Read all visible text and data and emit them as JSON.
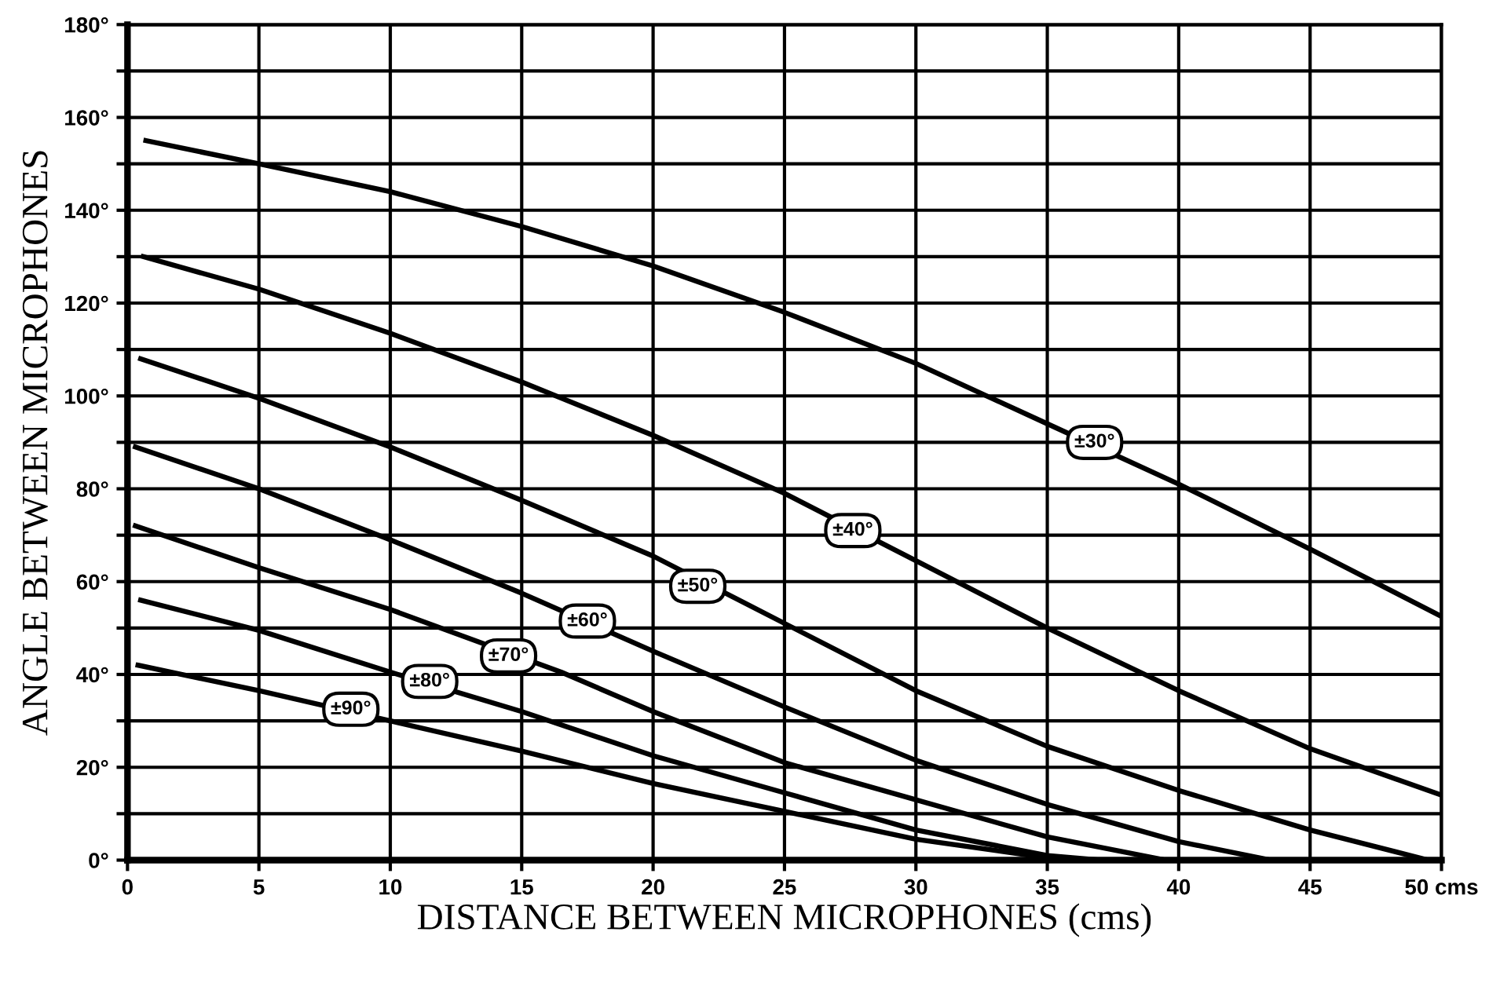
{
  "chart_data": {
    "type": "line",
    "xlabel": "DISTANCE BETWEEN MICROPHONES (cms)",
    "ylabel": "ANGLE BETWEEN MICROPHONES",
    "xlim": [
      0,
      50
    ],
    "ylim": [
      0,
      180
    ],
    "xticks": [
      0,
      5,
      10,
      15,
      20,
      25,
      30,
      35,
      40,
      45,
      {
        "value": 50,
        "label": "50 cms"
      }
    ],
    "yticks": [
      {
        "value": 0,
        "label": "0°"
      },
      {
        "value": 10,
        "label": null
      },
      {
        "value": 20,
        "label": "20°"
      },
      {
        "value": 30,
        "label": null
      },
      {
        "value": 40,
        "label": "40°"
      },
      {
        "value": 50,
        "label": null
      },
      {
        "value": 60,
        "label": "60°"
      },
      {
        "value": 70,
        "label": null
      },
      {
        "value": 80,
        "label": "80°"
      },
      {
        "value": 90,
        "label": null
      },
      {
        "value": 100,
        "label": "100°"
      },
      {
        "value": 110,
        "label": null
      },
      {
        "value": 120,
        "label": "120°"
      },
      {
        "value": 130,
        "label": null
      },
      {
        "value": 140,
        "label": "140°"
      },
      {
        "value": 150,
        "label": null
      },
      {
        "value": 160,
        "label": "160°"
      },
      {
        "value": 170,
        "label": null
      },
      {
        "value": 180,
        "label": "180°"
      }
    ],
    "grid": true,
    "legend": false,
    "marker": "none",
    "line_style": "solid",
    "series": [
      {
        "color": "#000000",
        "x": [
          0.7,
          5,
          10,
          15,
          20,
          25,
          30,
          35,
          40,
          45,
          50
        ],
        "values": [
          155,
          150,
          144,
          136.5,
          128,
          118,
          107,
          94,
          81,
          67,
          52.5
        ]
      },
      {
        "color": "#000000",
        "x": [
          0.6,
          5,
          10,
          15,
          20,
          25,
          30,
          35,
          40,
          45,
          50
        ],
        "values": [
          130,
          123,
          113.5,
          103,
          91.5,
          79,
          64.5,
          50,
          36.5,
          24,
          14
        ]
      },
      {
        "color": "#000000",
        "x": [
          0.5,
          5,
          10,
          15,
          20,
          25,
          30,
          35,
          40,
          45,
          49.5
        ],
        "values": [
          108,
          99.5,
          89,
          77.5,
          65.5,
          51,
          36.5,
          24.5,
          15,
          6.5,
          0
        ]
      },
      {
        "color": "#000000",
        "x": [
          0.3,
          5,
          10,
          15,
          20,
          25,
          30,
          35,
          40,
          43.5
        ],
        "values": [
          89,
          80,
          69,
          57.5,
          45,
          33,
          21.5,
          12,
          4,
          0
        ]
      },
      {
        "color": "#000000",
        "x": [
          0.3,
          5,
          10,
          16.5,
          20,
          25,
          30,
          35,
          39.5
        ],
        "values": [
          72,
          63,
          54,
          40.5,
          32,
          21,
          13,
          5,
          0
        ]
      },
      {
        "color": "#000000",
        "x": [
          0.5,
          5,
          10,
          15,
          20,
          25,
          30,
          35,
          37
        ],
        "values": [
          56,
          49.5,
          40.5,
          32,
          22.5,
          14.5,
          6.5,
          1,
          0
        ]
      },
      {
        "color": "#000000",
        "x": [
          0.4,
          5,
          10,
          15,
          20,
          25,
          30,
          35,
          36
        ],
        "values": [
          42,
          36.5,
          30,
          23.5,
          16.5,
          10.5,
          4.5,
          0.5,
          0
        ]
      }
    ],
    "annotations": [
      {
        "text": "±30°",
        "x": 36.8,
        "y": 90
      },
      {
        "text": "±40°",
        "x": 27.6,
        "y": 71
      },
      {
        "text": "±50°",
        "x": 21.7,
        "y": 59
      },
      {
        "text": "±60°",
        "x": 17.5,
        "y": 51.5
      },
      {
        "text": "±70°",
        "x": 14.5,
        "y": 44
      },
      {
        "text": "±80°",
        "x": 11.5,
        "y": 38.5
      },
      {
        "text": "±90°",
        "x": 8.5,
        "y": 32.5
      }
    ]
  }
}
